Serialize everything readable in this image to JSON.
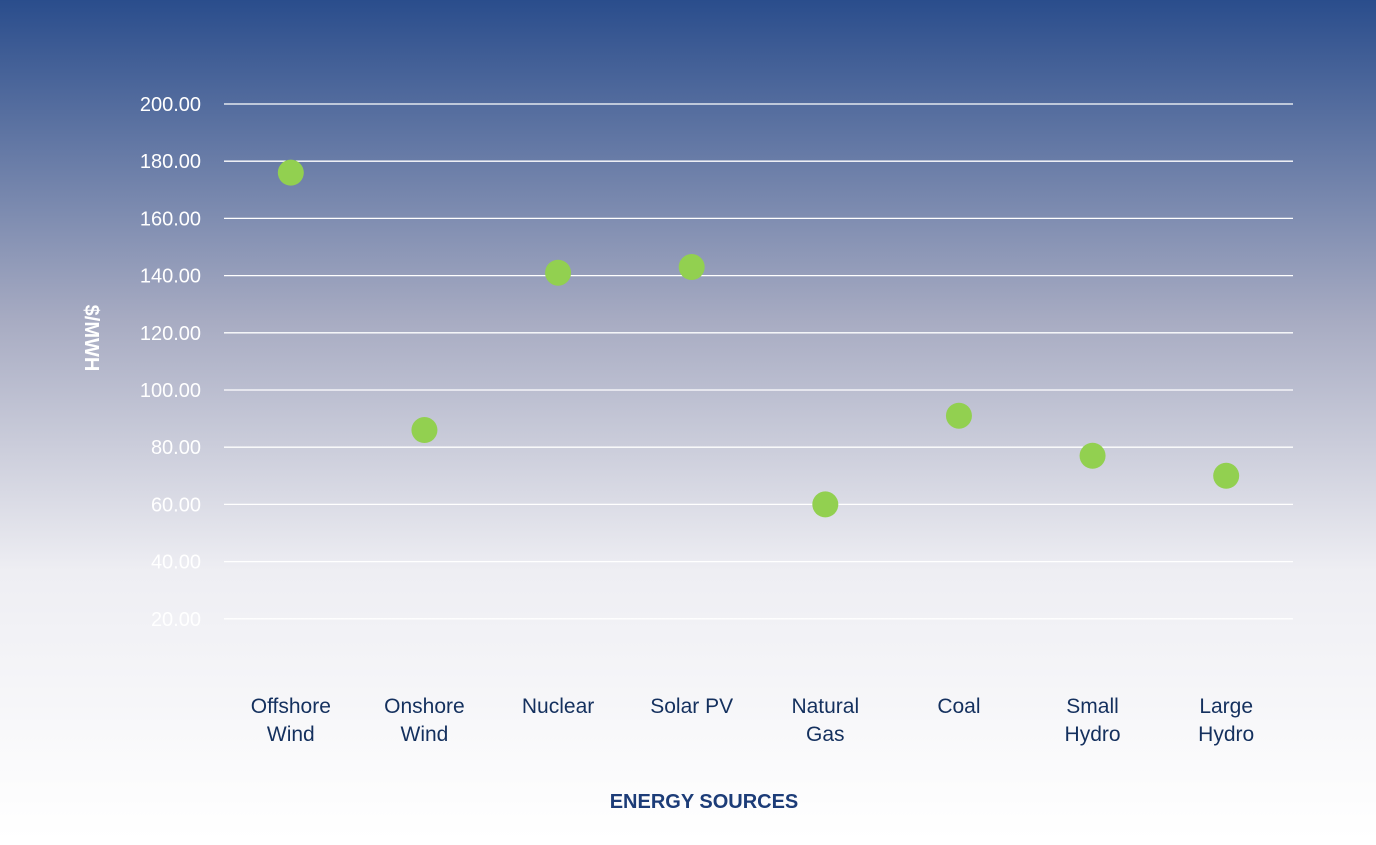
{
  "chart_data": {
    "type": "scatter",
    "title": "",
    "xlabel": "ENERGY SOURCES",
    "ylabel": "$/MWH",
    "categories": [
      [
        "Offshore",
        "Wind"
      ],
      [
        "Onshore",
        "Wind"
      ],
      [
        "Nuclear"
      ],
      [
        "Solar PV"
      ],
      [
        "Natural",
        "Gas"
      ],
      [
        "Coal"
      ],
      [
        "Small",
        "Hydro"
      ],
      [
        "Large",
        "Hydro"
      ]
    ],
    "values": [
      176,
      86,
      141,
      143,
      60,
      91,
      77,
      70
    ],
    "ylim": [
      0,
      200
    ],
    "yticks": [
      "20.00",
      "40.00",
      "60.00",
      "80.00",
      "100.00",
      "120.00",
      "140.00",
      "160.00",
      "180.00",
      "200.00"
    ],
    "ytick_values": [
      20,
      40,
      60,
      80,
      100,
      120,
      140,
      160,
      180,
      200
    ],
    "grid": true,
    "legend": "none",
    "colors": {
      "marker": "#92d050",
      "background_top": "#2a4d8c",
      "background_bottom": "#ffffff",
      "gridline": "#ffffff",
      "x_tick_text": "#14305e",
      "x_title": "#1c3c78"
    }
  }
}
